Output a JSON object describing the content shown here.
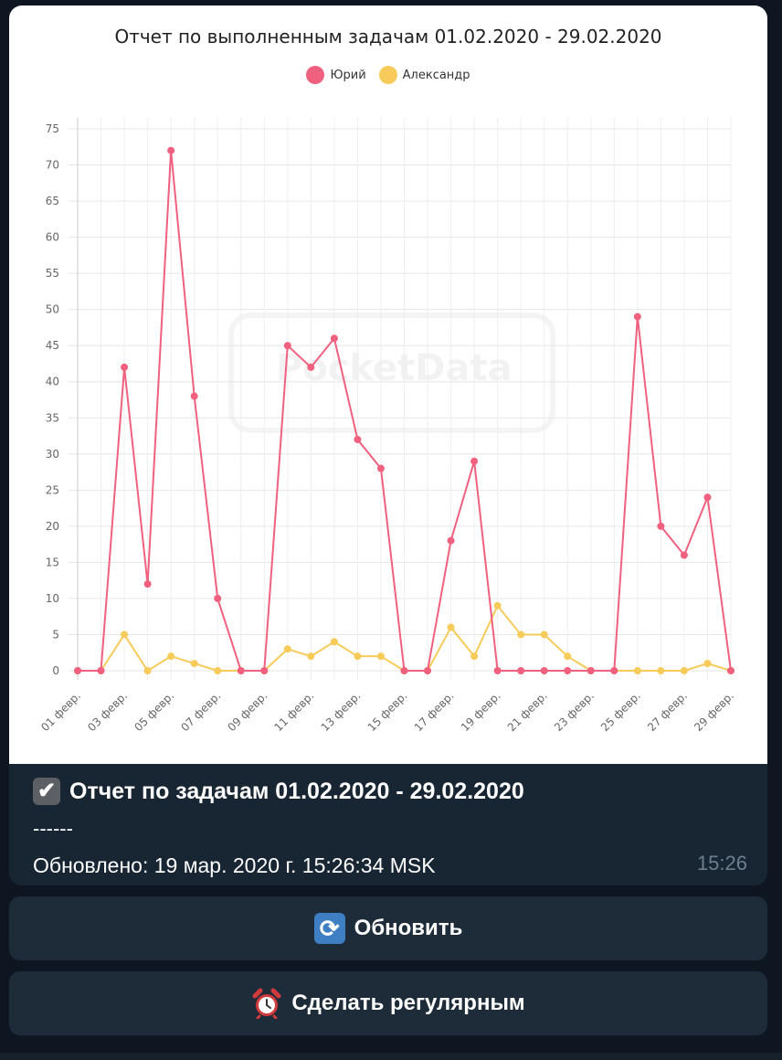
{
  "colors": {
    "series_yuriy": "#f0607f",
    "series_alexander": "#f6cb5a",
    "chat_background": "#0e1621",
    "bubble": "#182533",
    "button": "#1e2c3a"
  },
  "chart_data": {
    "type": "line",
    "title": "Отчет по выполненным задачам 01.02.2020 - 29.02.2020",
    "xlabel": "",
    "ylabel": "",
    "ylim": [
      0,
      75
    ],
    "yticks": [
      0,
      5,
      10,
      15,
      20,
      25,
      30,
      35,
      40,
      45,
      50,
      55,
      60,
      65,
      70,
      75
    ],
    "grid": true,
    "legend_position": "top-center",
    "x": [
      "01 февр.",
      "02 февр.",
      "03 февр.",
      "04 февр.",
      "05 февр.",
      "06 февр.",
      "07 февр.",
      "08 февр.",
      "09 февр.",
      "10 февр.",
      "11 февр.",
      "12 февр.",
      "13 февр.",
      "14 февр.",
      "15 февр.",
      "16 февр.",
      "17 февр.",
      "18 февр.",
      "19 февр.",
      "20 февр.",
      "21 февр.",
      "22 февр.",
      "23 февр.",
      "24 февр.",
      "25 февр.",
      "26 февр.",
      "27 февр.",
      "28 февр.",
      "29 февр."
    ],
    "x_tick_labels": [
      "01 февр.",
      "03 февр.",
      "05 февр.",
      "07 февр.",
      "09 февр.",
      "11 февр.",
      "13 февр.",
      "15 февр.",
      "17 февр.",
      "19 февр.",
      "21 февр.",
      "23 февр.",
      "25 февр.",
      "27 февр.",
      "29 февр."
    ],
    "series": [
      {
        "name": "Юрий",
        "color": "#f0607f",
        "values": [
          0,
          0,
          42,
          12,
          72,
          38,
          10,
          0,
          0,
          45,
          42,
          46,
          32,
          28,
          0,
          0,
          18,
          29,
          0,
          0,
          0,
          0,
          0,
          0,
          49,
          20,
          16,
          24,
          0
        ]
      },
      {
        "name": "Александр",
        "color": "#f6cb5a",
        "values": [
          0,
          0,
          5,
          0,
          2,
          1,
          0,
          0,
          0,
          3,
          2,
          4,
          2,
          2,
          0,
          0,
          6,
          2,
          9,
          5,
          5,
          2,
          0,
          0,
          0,
          0,
          0,
          1,
          0
        ]
      }
    ],
    "watermark": "PocketData"
  },
  "message": {
    "check_icon": "check-box-icon",
    "title": "Отчет по задачам 01.02.2020 - 29.02.2020",
    "separator": "------",
    "updated": "Обновлено: 19 мар. 2020 г. 15:26:34 MSK",
    "time": "15:26"
  },
  "buttons": {
    "refresh_icon": "refresh-icon",
    "refresh_label": "Обновить",
    "regular_icon": "alarm-clock-icon",
    "regular_label": "Сделать регулярным"
  }
}
